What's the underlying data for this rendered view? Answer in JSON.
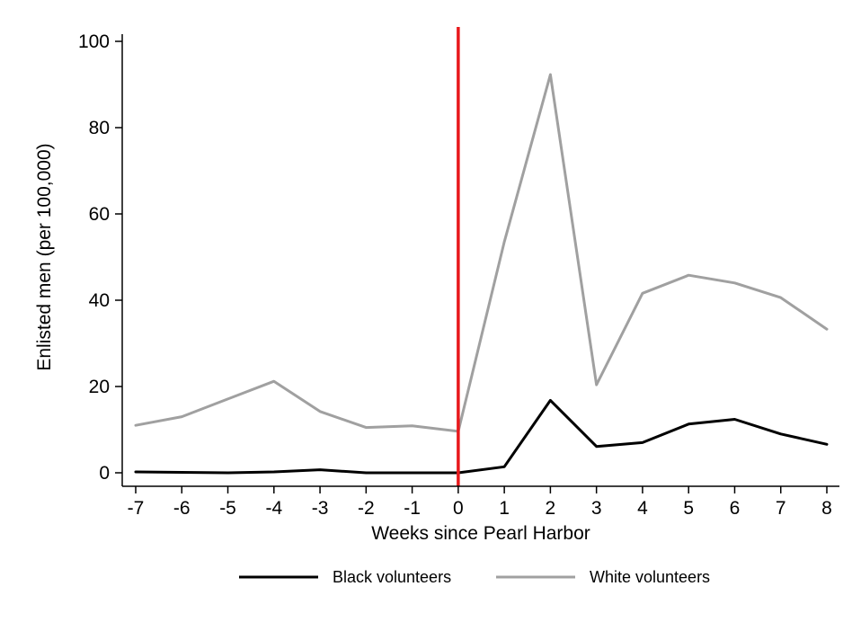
{
  "chart_data": {
    "type": "line",
    "title": "",
    "xlabel": "Weeks since Pearl Harbor",
    "ylabel": "Enlisted men (per 100,000)",
    "x": [
      -7,
      -6,
      -5,
      -4,
      -3,
      -2,
      -1,
      0,
      1,
      2,
      3,
      4,
      5,
      6,
      7,
      8
    ],
    "xlim": [
      -7,
      8
    ],
    "ylim": [
      0,
      100
    ],
    "xticks": [
      "-7",
      "-6",
      "-5",
      "-4",
      "-3",
      "-2",
      "-1",
      "0",
      "1",
      "2",
      "3",
      "4",
      "5",
      "6",
      "7",
      "8"
    ],
    "yticks": [
      "0",
      "20",
      "40",
      "60",
      "80",
      "100"
    ],
    "grid": false,
    "legend_position": "bottom",
    "reference_line": {
      "x": 0,
      "color": "#e8191c"
    },
    "series": [
      {
        "name": "Black volunteers",
        "color": "#000000",
        "values": [
          0.2,
          0.1,
          0.0,
          0.2,
          0.7,
          0.0,
          0.0,
          0.0,
          1.4,
          16.8,
          6.1,
          7.0,
          11.3,
          12.4,
          9.0,
          6.6
        ]
      },
      {
        "name": "White volunteers",
        "color": "#a0a0a0",
        "values": [
          11.0,
          13.0,
          17.1,
          21.2,
          14.2,
          10.5,
          10.9,
          9.6,
          53.5,
          92.3,
          20.4,
          41.6,
          45.8,
          44.0,
          40.6,
          33.3
        ]
      }
    ]
  }
}
